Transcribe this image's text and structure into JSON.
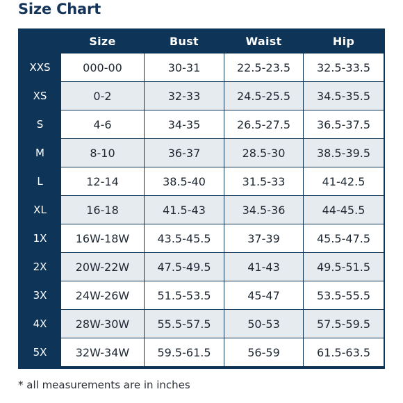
{
  "title": "Size Chart",
  "columns": [
    "",
    "Size",
    "Bust",
    "Waist",
    "Hip"
  ],
  "rows": [
    {
      "label": "XXS",
      "size": "000-00",
      "bust": "30-31",
      "waist": "22.5-23.5",
      "hip": "32.5-33.5"
    },
    {
      "label": "XS",
      "size": "0-2",
      "bust": "32-33",
      "waist": "24.5-25.5",
      "hip": "34.5-35.5"
    },
    {
      "label": "S",
      "size": "4-6",
      "bust": "34-35",
      "waist": "26.5-27.5",
      "hip": "36.5-37.5"
    },
    {
      "label": "M",
      "size": "8-10",
      "bust": "36-37",
      "waist": "28.5-30",
      "hip": "38.5-39.5"
    },
    {
      "label": "L",
      "size": "12-14",
      "bust": "38.5-40",
      "waist": "31.5-33",
      "hip": "41-42.5"
    },
    {
      "label": "XL",
      "size": "16-18",
      "bust": "41.5-43",
      "waist": "34.5-36",
      "hip": "44-45.5"
    },
    {
      "label": "1X",
      "size": "16W-18W",
      "bust": "43.5-45.5",
      "waist": "37-39",
      "hip": "45.5-47.5"
    },
    {
      "label": "2X",
      "size": "20W-22W",
      "bust": "47.5-49.5",
      "waist": "41-43",
      "hip": "49.5-51.5"
    },
    {
      "label": "3X",
      "size": "24W-26W",
      "bust": "51.5-53.5",
      "waist": "45-47",
      "hip": "53.5-55.5"
    },
    {
      "label": "4X",
      "size": "28W-30W",
      "bust": "55.5-57.5",
      "waist": "50-53",
      "hip": "57.5-59.5"
    },
    {
      "label": "5X",
      "size": "32W-34W",
      "bust": "59.5-61.5",
      "waist": "56-59",
      "hip": "61.5-63.5"
    }
  ],
  "footnote": "* all measurements are in inches",
  "colors": {
    "header_background": "#0e3457",
    "title_text": "#15345a",
    "stripe_light": "#ffffff",
    "stripe_gray": "#e6ebef"
  }
}
